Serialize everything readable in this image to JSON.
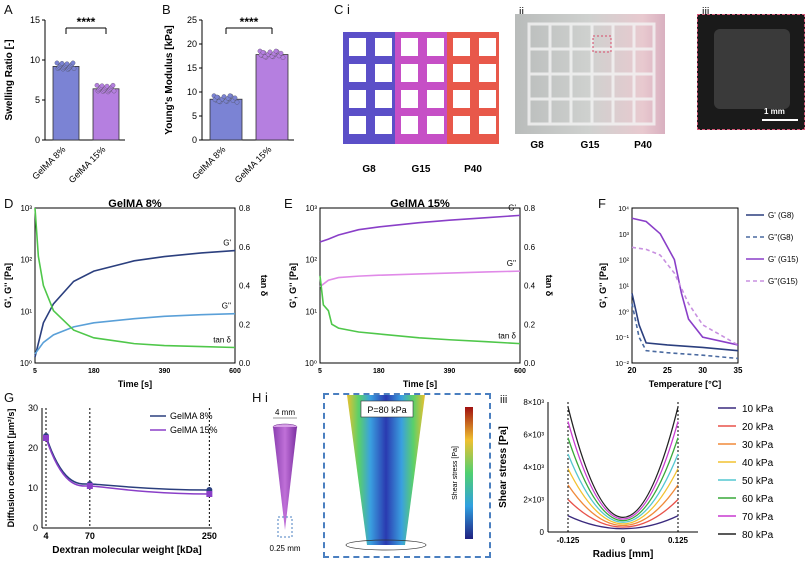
{
  "panel_letters": {
    "a": "A",
    "b": "B",
    "c": "C i",
    "c2": "ii",
    "c3": "iii",
    "d": "D",
    "e": "E",
    "f": "F",
    "g": "G",
    "h": "H i",
    "h2": "ii",
    "h3": "iii"
  },
  "colors": {
    "g8": "#7b83d4",
    "g15": "#b57fe0",
    "g8_line": "#2b3f7e",
    "g15_line": "#8a3fc8",
    "gpp": "#5aa0d8",
    "tan": "#4fc74a"
  },
  "chart_data": [
    {
      "id": "A",
      "type": "bar",
      "ylabel": "Swelling Ratio [-]",
      "categories": [
        "GelMA 8%",
        "GelMA 15%"
      ],
      "values": [
        9.2,
        6.4
      ],
      "ylim": [
        0,
        15
      ],
      "yticks": [
        0,
        5,
        10,
        15
      ],
      "significance": "****"
    },
    {
      "id": "B",
      "type": "bar",
      "ylabel": "Young's Modulus [kPa]",
      "categories": [
        "GelMA 8%",
        "GelMA 15%"
      ],
      "values": [
        8.5,
        17.8
      ],
      "ylim": [
        0,
        25
      ],
      "yticks": [
        0,
        5,
        10,
        15,
        20,
        25
      ],
      "significance": "****"
    },
    {
      "id": "D",
      "type": "line",
      "title": "GelMA 8%",
      "xlabel": "Time [s]",
      "ylabel": "G', G'' [Pa]",
      "y2label": "tan δ",
      "xticks": [
        5,
        180,
        390,
        600
      ],
      "yticks": [
        "10⁰",
        "10¹",
        "10²",
        "10³"
      ],
      "y2ticks": [
        "0.0",
        "0.2",
        "0.4",
        "0.6",
        "0.8"
      ],
      "series": [
        {
          "name": "G'",
          "x": [
            5,
            30,
            60,
            120,
            180,
            300,
            390,
            500,
            600
          ],
          "values": [
            1.3,
            6,
            14,
            38,
            60,
            95,
            115,
            135,
            150
          ]
        },
        {
          "name": "G''",
          "x": [
            5,
            30,
            60,
            120,
            180,
            300,
            390,
            500,
            600
          ],
          "values": [
            1.5,
            2.5,
            3.5,
            5,
            6,
            7.2,
            8,
            8.6,
            9
          ]
        },
        {
          "name": "tan δ",
          "x": [
            5,
            15,
            30,
            60,
            120,
            180,
            300,
            390,
            500,
            600
          ],
          "values": [
            0.8,
            0.55,
            0.4,
            0.27,
            0.17,
            0.13,
            0.1,
            0.09,
            0.085,
            0.08
          ]
        }
      ]
    },
    {
      "id": "E",
      "type": "line",
      "title": "GelMA 15%",
      "xlabel": "Time [s]",
      "ylabel": "G', G'' [Pa]",
      "y2label": "tan δ",
      "xticks": [
        5,
        180,
        390,
        600
      ],
      "yticks": [
        "10⁰",
        "10¹",
        "10²",
        "10³"
      ],
      "y2ticks": [
        "0.0",
        "0.2",
        "0.4",
        "0.6",
        "0.8"
      ],
      "series": [
        {
          "name": "G'",
          "x": [
            5,
            30,
            60,
            120,
            180,
            300,
            390,
            500,
            600
          ],
          "values": [
            220,
            250,
            300,
            380,
            430,
            520,
            580,
            650,
            720
          ]
        },
        {
          "name": "G''",
          "x": [
            5,
            30,
            60,
            120,
            180,
            300,
            390,
            500,
            600
          ],
          "values": [
            30,
            40,
            45,
            48,
            50,
            53,
            55,
            58,
            60
          ]
        },
        {
          "name": "tan δ",
          "x": [
            5,
            15,
            30,
            40,
            60,
            120,
            180,
            300,
            390,
            500,
            600
          ],
          "values": [
            0.45,
            0.3,
            0.27,
            0.2,
            0.18,
            0.16,
            0.15,
            0.13,
            0.12,
            0.11,
            0.1
          ]
        }
      ]
    },
    {
      "id": "F",
      "type": "line",
      "xlabel": "Temperature [°C]",
      "ylabel": "G', G'' [Pa]",
      "xticks": [
        20,
        25,
        30,
        35
      ],
      "yticks": [
        "10⁻²",
        "10⁻¹",
        "10⁰",
        "10¹",
        "10²",
        "10³",
        "10⁴"
      ],
      "series": [
        {
          "name": "G' (G8)",
          "x": [
            20,
            21,
            22,
            25,
            30,
            35
          ],
          "values": [
            5,
            0.3,
            0.06,
            0.05,
            0.04,
            0.03
          ]
        },
        {
          "name": "G''(G8)",
          "x": [
            20,
            21,
            22,
            25,
            30,
            35
          ],
          "values": [
            2,
            0.1,
            0.03,
            0.025,
            0.02,
            0.015
          ]
        },
        {
          "name": "G' (G15)",
          "x": [
            20,
            22,
            24,
            26,
            27,
            28,
            30,
            35
          ],
          "values": [
            4000,
            3000,
            1000,
            100,
            5,
            0.5,
            0.1,
            0.05
          ]
        },
        {
          "name": "G''(G15)",
          "x": [
            20,
            22,
            24,
            26,
            28,
            30,
            35
          ],
          "values": [
            300,
            250,
            150,
            30,
            2,
            0.3,
            0.05
          ]
        }
      ]
    },
    {
      "id": "G",
      "type": "line",
      "xlabel": "Dextran molecular weight [kDa]",
      "ylabel": "Diffusion coefficient [µm²/s]",
      "xticks": [
        4,
        70,
        250
      ],
      "yticks": [
        0,
        10,
        20,
        30
      ],
      "series": [
        {
          "name": "GelMA 8%",
          "x": [
            4,
            70,
            250
          ],
          "values": [
            23,
            11,
            9.5
          ]
        },
        {
          "name": "GelMA 15%",
          "x": [
            4,
            70,
            250
          ],
          "values": [
            22.5,
            10.5,
            8.5
          ]
        }
      ]
    },
    {
      "id": "Hiii",
      "type": "line",
      "xlabel": "Radius [mm]",
      "ylabel": "Shear stress [Pa]",
      "xticks": [
        "-0.125",
        "0",
        "0.125"
      ],
      "yticks": [
        "0",
        "2×10³",
        "4×10³",
        "6×10³",
        "8×10³"
      ],
      "series": [
        {
          "name": "10 kPa",
          "values": [
            1000,
            200,
            1000
          ]
        },
        {
          "name": "20 kPa",
          "values": [
            2000,
            300,
            2000
          ]
        },
        {
          "name": "30 kPa",
          "values": [
            2900,
            400,
            2900
          ]
        },
        {
          "name": "40 kPa",
          "values": [
            3900,
            500,
            3900
          ]
        },
        {
          "name": "50 kPa",
          "values": [
            4800,
            600,
            4800
          ]
        },
        {
          "name": "60 kPa",
          "values": [
            5800,
            700,
            5800
          ]
        },
        {
          "name": "70 kPa",
          "values": [
            6800,
            800,
            6800
          ]
        },
        {
          "name": "80 kPa",
          "values": [
            7700,
            900,
            7700
          ]
        }
      ]
    }
  ],
  "c_panel": {
    "labels": [
      "G8",
      "G15",
      "P40"
    ],
    "scale": "1 mm"
  },
  "h_panel": {
    "top": "4 mm",
    "bottom": "0.25 mm",
    "pressure": "P=80 kPa",
    "colorbar": "Shear stress [Pa]"
  },
  "hiii_colors": [
    "#3a2a7e",
    "#e8524a",
    "#f08a3a",
    "#f2c230",
    "#54c7d0",
    "#38a83a",
    "#c93ad0",
    "#222"
  ]
}
